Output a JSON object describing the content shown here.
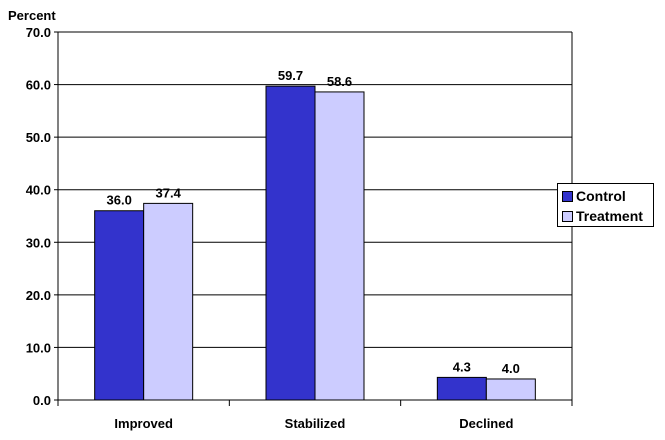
{
  "chart_data": {
    "type": "bar",
    "ylabel": "Percent",
    "categories": [
      "Improved",
      "Stabilized",
      "Declined"
    ],
    "series": [
      {
        "name": "Control",
        "values": [
          36.0,
          59.7,
          4.3
        ],
        "color": "#3333cc"
      },
      {
        "name": "Treatment",
        "values": [
          37.4,
          58.6,
          4.0
        ],
        "color": "#ccccff"
      }
    ],
    "ylim": [
      0,
      70
    ],
    "yticks": [
      "0.0",
      "10.0",
      "20.0",
      "30.0",
      "40.0",
      "50.0",
      "60.0",
      "70.0"
    ],
    "grid": true,
    "legend": "right"
  }
}
